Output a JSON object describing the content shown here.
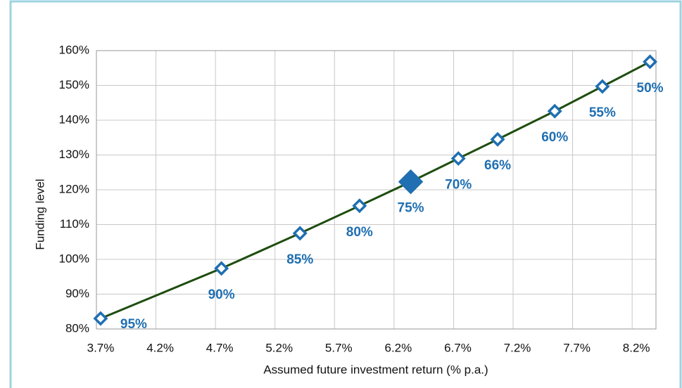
{
  "chart_data": {
    "type": "line",
    "x_label": "Assumed future investment return (% p.a.)",
    "y_label": "Funding level",
    "x": [
      3.735,
      4.75,
      5.41,
      5.91,
      6.34,
      6.74,
      7.07,
      7.55,
      7.95,
      8.35
    ],
    "series": [
      {
        "color": "#1e4d0f",
        "marker_color": "#1f6fb2",
        "values": [
          83.0,
          97.4,
          107.5,
          115.4,
          122.3,
          129.0,
          134.5,
          142.6,
          149.7,
          156.8
        ],
        "point_labels": [
          "95%",
          "90%",
          "85%",
          "80%",
          "75%",
          "70%",
          "66%",
          "60%",
          "55%",
          "50%"
        ],
        "highlight": 4
      }
    ],
    "xlim": [
      3.7,
      8.4
    ],
    "xticks": [
      {
        "value": 3.7,
        "label": "3.7%"
      },
      {
        "value": 4.2,
        "label": "4.2%"
      },
      {
        "value": 4.7,
        "label": "4.7%"
      },
      {
        "value": 5.2,
        "label": "5.2%"
      },
      {
        "value": 5.7,
        "label": "5.7%"
      },
      {
        "value": 6.2,
        "label": "6.2%"
      },
      {
        "value": 6.7,
        "label": "6.7%"
      },
      {
        "value": 7.2,
        "label": "7.2%"
      },
      {
        "value": 7.7,
        "label": "7.7%"
      },
      {
        "value": 8.2,
        "label": "8.2%"
      }
    ],
    "ylim": [
      80,
      160
    ],
    "yticks": [
      {
        "value": 80,
        "label": "80%"
      },
      {
        "value": 90,
        "label": "90%"
      },
      {
        "value": 100,
        "label": "100%"
      },
      {
        "value": 110,
        "label": "110%"
      },
      {
        "value": 120,
        "label": "120%"
      },
      {
        "value": 130,
        "label": "130%"
      },
      {
        "value": 140,
        "label": "140%"
      },
      {
        "value": 150,
        "label": "150%"
      },
      {
        "value": 160,
        "label": "160%"
      }
    ],
    "grid": true
  }
}
